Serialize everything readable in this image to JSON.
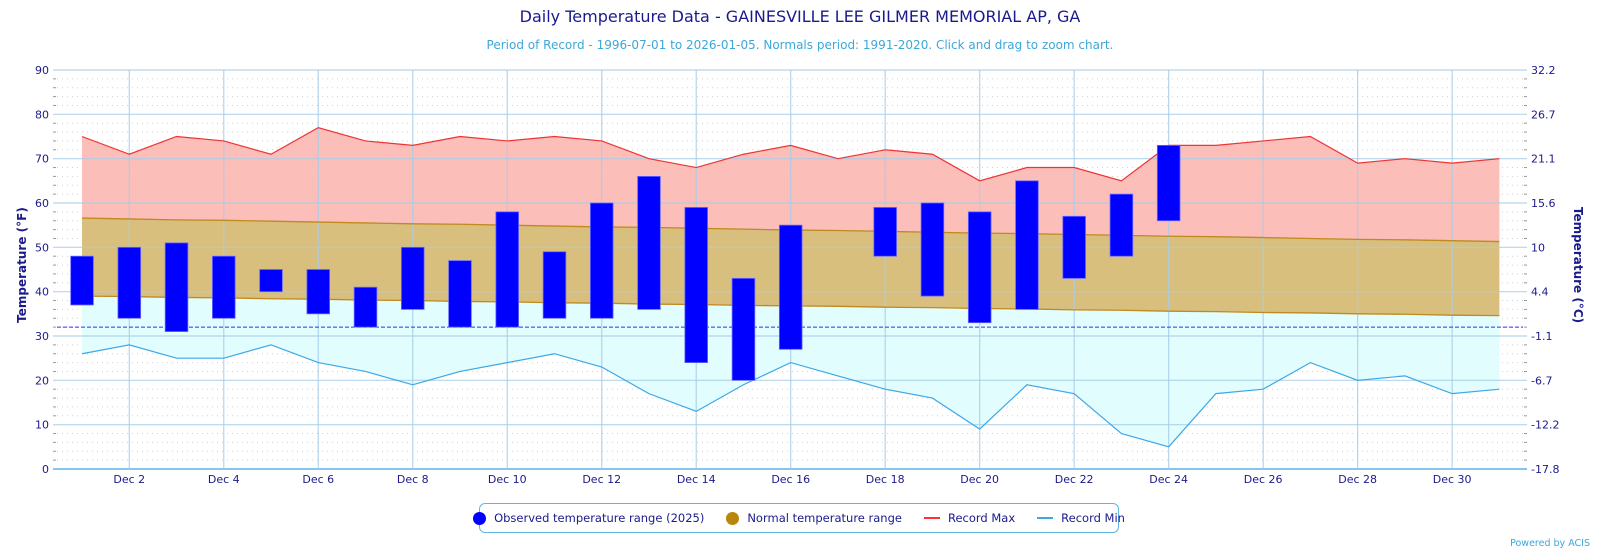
{
  "header": {
    "title": "Daily Temperature Data - GAINESVILLE LEE GILMER MEMORIAL AP, GA",
    "subtitle": "Period of Record - 1996-07-01 to 2026-01-05. Normals period: 1991-2020. Click and drag to zoom chart."
  },
  "legend": {
    "items": [
      {
        "label": "Observed temperature range (2025)",
        "color": "#0000ff",
        "symbol": "dot"
      },
      {
        "label": "Normal temperature range",
        "color": "#b8860b",
        "symbol": "dot"
      },
      {
        "label": "Record Max",
        "color": "#ff3333",
        "symbol": "line"
      },
      {
        "label": "Record Min",
        "color": "#3da7e8",
        "symbol": "line"
      }
    ]
  },
  "credit": "Powered by ACIS",
  "colors": {
    "observed": "#0000ff",
    "normal_fill": "#d8bf7e",
    "normal_line": "#c08a1e",
    "record_max_line": "#ee3333",
    "record_max_fill": "#fbbab5",
    "record_min_line": "#3da7e8",
    "record_min_fill": "#e0fdfd",
    "freezing_line": "#3333dd",
    "axis_text": "#1a1a8c"
  },
  "chart_data": {
    "type": "bar",
    "title": "Daily Temperature Data - GAINESVILLE LEE GILMER MEMORIAL AP, GA",
    "subtitle": "Period of Record - 1996-07-01 to 2026-01-05. Normals period: 1991-2020. Click and drag to zoom chart.",
    "xlabel": "",
    "ylabel": "Temperature (°F)",
    "ylabel_right": "Temperature (°C)",
    "ylim": [
      0,
      90
    ],
    "xlim_days": [
      0.47,
      31.5
    ],
    "y_ticks": [
      0,
      10,
      20,
      30,
      40,
      50,
      60,
      70,
      80,
      90
    ],
    "y_ticks_right": [
      "-17.8",
      "-12.2",
      "-6.7",
      "-1.1",
      "4.4",
      "10",
      "15.6",
      "21.1",
      "26.7",
      "32.2"
    ],
    "x_tick_days": [
      2,
      4,
      6,
      8,
      10,
      12,
      14,
      16,
      18,
      20,
      22,
      24,
      26,
      28,
      30
    ],
    "x_tick_labels": [
      "Dec 2",
      "Dec 4",
      "Dec 6",
      "Dec 8",
      "Dec 10",
      "Dec 12",
      "Dec 14",
      "Dec 16",
      "Dec 18",
      "Dec 20",
      "Dec 22",
      "Dec 24",
      "Dec 26",
      "Dec 28",
      "Dec 30"
    ],
    "freezing_line": 32,
    "grid": true,
    "legend_position": "bottom-center",
    "days": [
      1,
      2,
      3,
      4,
      5,
      6,
      7,
      8,
      9,
      10,
      11,
      12,
      13,
      14,
      15,
      16,
      17,
      18,
      19,
      20,
      21,
      22,
      23,
      24,
      25,
      26,
      27,
      28,
      29,
      30,
      31
    ],
    "series": [
      {
        "name": "Observed temperature range (2025)",
        "type": "range-bar",
        "low": [
          37,
          34,
          31,
          34,
          40,
          35,
          32,
          36,
          32,
          32,
          34,
          34,
          36,
          24,
          20,
          27,
          null,
          48,
          39,
          33,
          36,
          43,
          48,
          56,
          null,
          null,
          null,
          null,
          null,
          null,
          null
        ],
        "high": [
          48,
          50,
          51,
          48,
          45,
          45,
          41,
          50,
          47,
          58,
          49,
          60,
          66,
          59,
          43,
          55,
          null,
          59,
          60,
          58,
          65,
          57,
          62,
          73,
          null,
          null,
          null,
          null,
          null,
          null,
          null
        ]
      },
      {
        "name": "Normal temperature range",
        "type": "area-range",
        "low": [
          39.0,
          38.9,
          38.7,
          38.6,
          38.4,
          38.3,
          38.1,
          38.0,
          37.8,
          37.7,
          37.5,
          37.4,
          37.2,
          37.1,
          36.9,
          36.8,
          36.7,
          36.5,
          36.4,
          36.2,
          36.1,
          35.9,
          35.8,
          35.6,
          35.5,
          35.3,
          35.2,
          35.0,
          34.9,
          34.7,
          34.6
        ],
        "high": [
          56.6,
          56.4,
          56.2,
          56.1,
          55.9,
          55.7,
          55.5,
          55.3,
          55.2,
          55.0,
          54.8,
          54.6,
          54.5,
          54.3,
          54.1,
          53.9,
          53.8,
          53.6,
          53.4,
          53.2,
          53.1,
          52.9,
          52.7,
          52.5,
          52.4,
          52.2,
          52.0,
          51.8,
          51.7,
          51.5,
          51.3
        ]
      },
      {
        "name": "Record Max",
        "type": "line",
        "values": [
          75,
          71,
          75,
          74,
          71,
          77,
          74,
          73,
          75,
          74,
          75,
          74,
          70,
          68,
          71,
          73,
          70,
          72,
          71,
          65,
          68,
          68,
          65,
          73,
          73,
          74,
          75,
          69,
          70,
          69,
          70
        ]
      },
      {
        "name": "Record Min",
        "type": "line",
        "values": [
          26,
          28,
          25,
          25,
          28,
          24,
          22,
          19,
          22,
          24,
          26,
          23,
          17,
          13,
          19,
          24,
          21,
          18,
          16,
          9,
          19,
          17,
          8,
          5,
          17,
          18,
          24,
          20,
          21,
          17,
          18
        ]
      }
    ]
  }
}
